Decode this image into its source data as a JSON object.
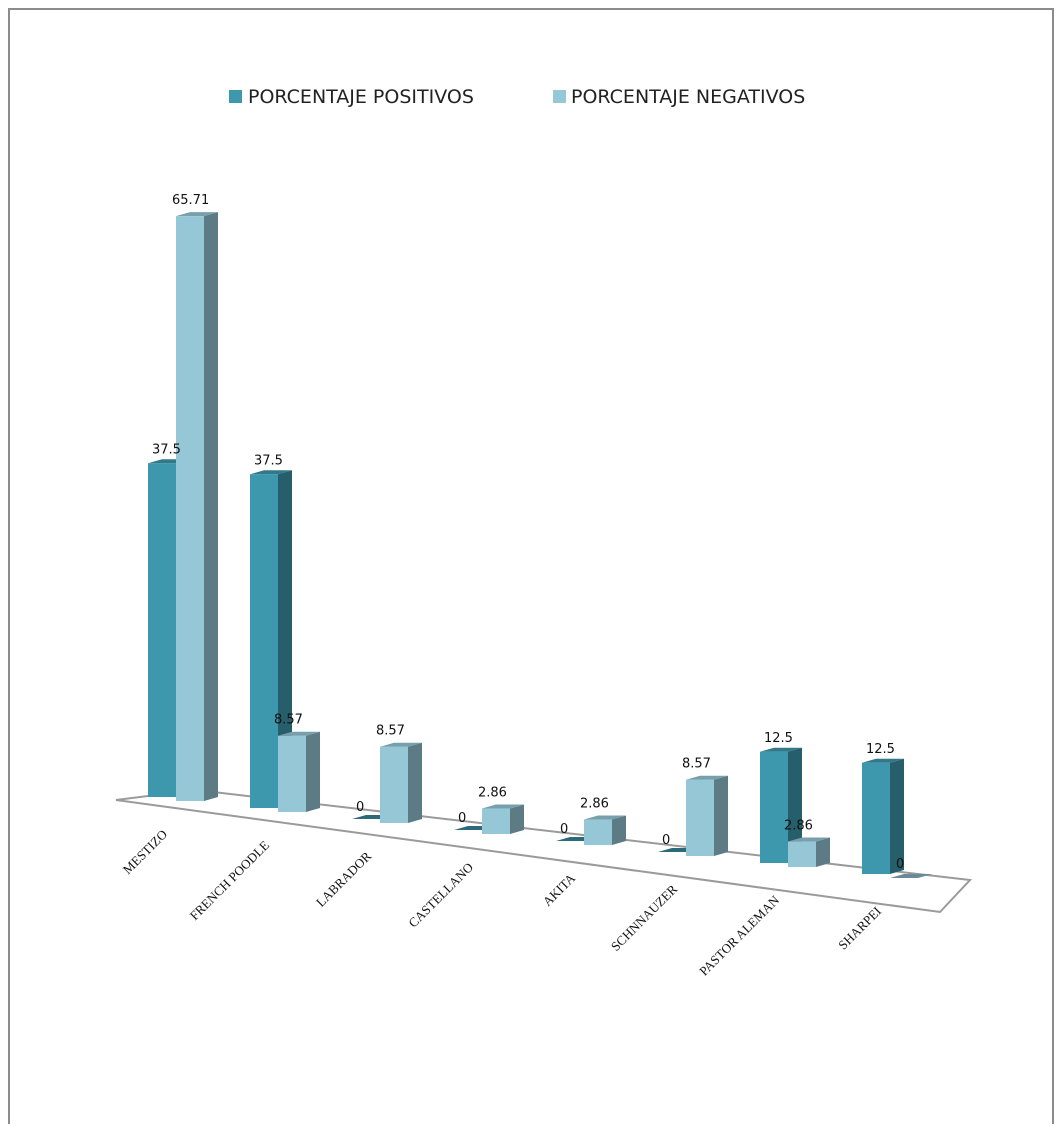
{
  "chart_data": {
    "type": "bar",
    "categories": [
      "MESTIZO",
      "FRENCH POODLE",
      "LABRADOR",
      "CASTELLANO",
      "AKITA",
      "SCHNNAUZER",
      "PASTOR ALEMAN",
      "SHARPEI"
    ],
    "series": [
      {
        "name": "PORCENTAJE POSITIVOS",
        "values": [
          37.5,
          37.5,
          0,
          0,
          0,
          0,
          12.5,
          12.5
        ],
        "labels": [
          "37.5",
          "37.5",
          "0",
          "0",
          "0",
          "0",
          "12.5",
          "12.5"
        ],
        "color": "#3d97ad"
      },
      {
        "name": "PORCENTAJE NEGATIVOS",
        "values": [
          65.71,
          8.57,
          8.57,
          2.86,
          2.86,
          8.57,
          2.86,
          0
        ],
        "labels": [
          "65.71",
          "8.57",
          "8.57",
          "2.86",
          "2.86",
          "8.57",
          "2.86",
          "0"
        ],
        "color": "#96c7d7"
      }
    ],
    "style": "3d-clustered-column",
    "legend_position": "top",
    "grid": false,
    "title": "",
    "xlabel": "",
    "ylabel": ""
  }
}
